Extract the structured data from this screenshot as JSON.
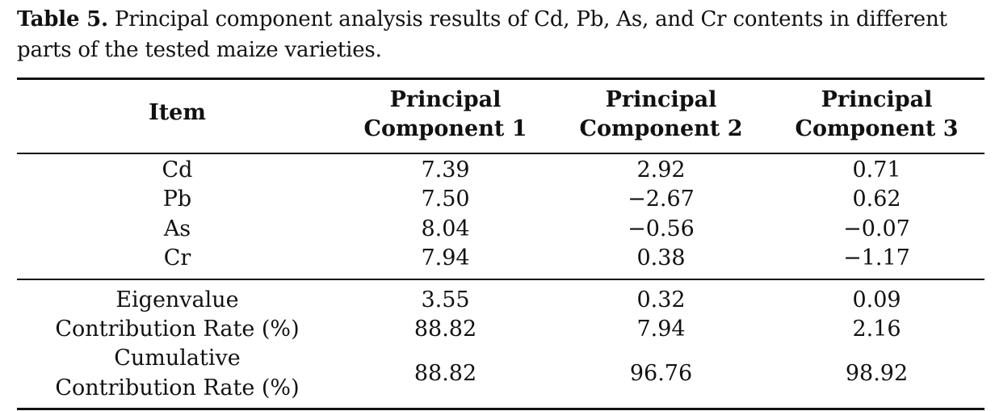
{
  "caption": {
    "label": "Table 5.",
    "text": " Principal component analysis results of Cd, Pb, As, and Cr contents in different parts of the tested maize varieties."
  },
  "table": {
    "headers": {
      "item": "Item",
      "pc1_line1": "Principal",
      "pc1_line2": "Component 1",
      "pc2_line1": "Principal",
      "pc2_line2": "Component 2",
      "pc3_line1": "Principal",
      "pc3_line2": "Component 3"
    },
    "loadings": [
      {
        "item": "Cd",
        "pc1": "7.39",
        "pc2": "2.92",
        "pc3": "0.71"
      },
      {
        "item": "Pb",
        "pc1": "7.50",
        "pc2": "−2.67",
        "pc3": "0.62"
      },
      {
        "item": "As",
        "pc1": "8.04",
        "pc2": "−0.56",
        "pc3": "−0.07"
      },
      {
        "item": "Cr",
        "pc1": "7.94",
        "pc2": "0.38",
        "pc3": "−1.17"
      }
    ],
    "summary": {
      "eigenvalue": {
        "label": "Eigenvalue",
        "pc1": "3.55",
        "pc2": "0.32",
        "pc3": "0.09"
      },
      "contribution": {
        "label": "Contribution Rate (%)",
        "pc1": "88.82",
        "pc2": "7.94",
        "pc3": "2.16"
      },
      "cumulative": {
        "label_line1": "Cumulative",
        "label_line2": "Contribution Rate (%)",
        "pc1": "88.82",
        "pc2": "96.76",
        "pc3": "98.92"
      }
    }
  }
}
